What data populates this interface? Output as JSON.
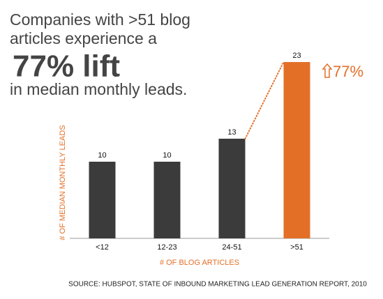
{
  "chart_data": {
    "type": "bar",
    "title_lines": [
      "Companies with >51 blog",
      "articles experience a",
      "77% lift",
      "in median monthly leads."
    ],
    "categories": [
      "<12",
      "12-23",
      "24-51",
      ">51"
    ],
    "values": [
      10,
      10,
      13,
      23
    ],
    "colors": [
      "#3b3b3b",
      "#3b3b3b",
      "#3b3b3b",
      "#e36f27"
    ],
    "ylim": [
      0,
      25
    ],
    "x_label": "# OF BLOG ARTICLES",
    "y_label": "# OF MEDIAN MONTHLY LEADS",
    "annotation": "77%",
    "source": "SOURCE: HUBSPOT, STATE OF INBOUND MARKETING LEAD GENERATION REPORT, 2010"
  }
}
